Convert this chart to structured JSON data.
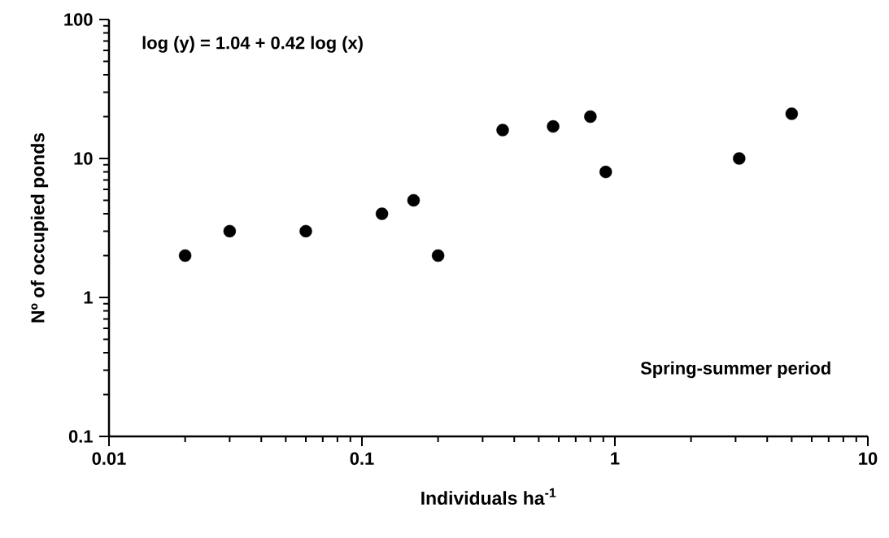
{
  "chart_data": {
    "type": "scatter",
    "xlabel": "Individuals ha$^{-1}$",
    "ylabel": "Nº of occupied ponds",
    "annotations": [
      "log (y) = 1.04 + 0.42 log (x)",
      "Spring-summer period"
    ],
    "x": [
      0.02,
      0.03,
      0.06,
      0.12,
      0.16,
      0.2,
      0.36,
      0.57,
      0.8,
      0.92,
      3.1,
      5
    ],
    "series": [
      {
        "color": "#000000",
        "values": [
          2,
          3,
          3,
          4,
          5,
          2,
          16,
          17,
          20,
          8,
          10,
          21
        ]
      }
    ],
    "log": "xy",
    "marker": "circle",
    "xlim": [
      0.01,
      10
    ],
    "ylim": [
      0.1,
      100
    ],
    "xticks": [
      0.01,
      0.1,
      1,
      10
    ],
    "yticks": [
      0.1,
      1,
      10,
      100
    ]
  }
}
